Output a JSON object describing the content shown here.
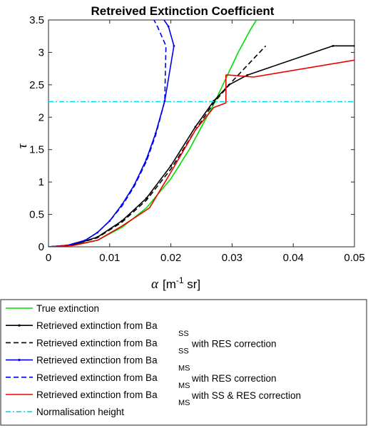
{
  "chart_data": {
    "type": "line",
    "title": "Retreived Extinction Coefficient",
    "xlabel_symbol": "α",
    "xlabel_units": "[m",
    "xlabel_exp": "-1",
    "xlabel_tail": " sr]",
    "ylabel": "τ",
    "xlim": [
      0,
      0.05
    ],
    "ylim": [
      0,
      3.5
    ],
    "xticks": [
      0,
      0.01,
      0.02,
      0.03,
      0.04,
      0.05
    ],
    "xtick_labels": [
      "0",
      "0.01",
      "0.02",
      "0.03",
      "0.04",
      "0.05"
    ],
    "yticks": [
      0,
      0.5,
      1,
      1.5,
      2,
      2.5,
      3,
      3.5
    ],
    "ytick_labels": [
      "0",
      "0.5",
      "1",
      "1.5",
      "2",
      "2.5",
      "3",
      "3.5"
    ],
    "grid": false,
    "legend_position": "below",
    "series": [
      {
        "name": "True extinction",
        "legend_main": "True extinction",
        "legend_sub": "",
        "legend_tail": "",
        "color": "#00dd00",
        "dash": "solid",
        "marker": false,
        "x": [
          0,
          0.004,
          0.008,
          0.012,
          0.016,
          0.02,
          0.023,
          0.025,
          0.027,
          0.029,
          0.031,
          0.033,
          0.0345
        ],
        "y": [
          0,
          0.03,
          0.1,
          0.3,
          0.6,
          1.05,
          1.5,
          1.85,
          2.2,
          2.6,
          3.0,
          3.35,
          3.58
        ]
      },
      {
        "name": "Retrieved extinction from Ba SS",
        "legend_main": "Retrieved extinction from Ba",
        "legend_sub": "SS",
        "legend_tail": "",
        "color": "#000000",
        "dash": "solid",
        "marker": true,
        "x": [
          0,
          0.004,
          0.008,
          0.012,
          0.016,
          0.02,
          0.024,
          0.027,
          0.0295,
          0.0325,
          0.0465,
          0.05
        ],
        "y": [
          0,
          0.03,
          0.15,
          0.4,
          0.75,
          1.25,
          1.85,
          2.25,
          2.5,
          2.65,
          3.1,
          3.1
        ]
      },
      {
        "name": "Retrieved extinction from Ba SS with RES correction",
        "legend_main": "Retrieved extinction from Ba",
        "legend_sub": "SS",
        "legend_tail": " with RES correction",
        "color": "#000000",
        "dash": "dashed",
        "marker": false,
        "x": [
          0,
          0.004,
          0.008,
          0.012,
          0.016,
          0.02,
          0.024,
          0.027,
          0.03,
          0.033,
          0.0355
        ],
        "y": [
          0,
          0.03,
          0.14,
          0.38,
          0.72,
          1.2,
          1.8,
          2.22,
          2.55,
          2.85,
          3.1
        ]
      },
      {
        "name": "Retrieved extinction from Ba MS",
        "legend_main": "Retrieved extinction from Ba",
        "legend_sub": "MS",
        "legend_tail": "",
        "color": "#0000ee",
        "dash": "solid",
        "marker": true,
        "x": [
          0,
          0.003,
          0.006,
          0.008,
          0.01,
          0.012,
          0.014,
          0.016,
          0.0175,
          0.019,
          0.0205,
          0.0196,
          0.0183
        ],
        "y": [
          0,
          0.02,
          0.1,
          0.22,
          0.4,
          0.65,
          0.95,
          1.35,
          1.75,
          2.25,
          3.1,
          3.4,
          3.58
        ]
      },
      {
        "name": "Retrieved extinction from Ba MS with RES correction",
        "legend_main": "Retrieved extinction from Ba",
        "legend_sub": "MS",
        "legend_tail": " with RES correction",
        "color": "#0000ee",
        "dash": "dashed",
        "marker": false,
        "x": [
          0,
          0.003,
          0.006,
          0.008,
          0.01,
          0.012,
          0.014,
          0.016,
          0.0175,
          0.019,
          0.0192,
          0.0178,
          0.0168
        ],
        "y": [
          0,
          0.02,
          0.1,
          0.22,
          0.4,
          0.63,
          0.93,
          1.32,
          1.72,
          2.25,
          3.1,
          3.4,
          3.58
        ]
      },
      {
        "name": "Retrieved extinction from Ba MS with SS & RES correction",
        "legend_main": "Retrieved extinction from Ba",
        "legend_sub": "MS",
        "legend_tail": " with SS & RES correction",
        "color": "#ee0000",
        "dash": "solid",
        "marker": false,
        "x": [
          0,
          0.004,
          0.008,
          0.012,
          0.0165,
          0.02,
          0.024,
          0.027,
          0.029,
          0.029,
          0.0295,
          0.0335,
          0.05
        ],
        "y": [
          0,
          0.02,
          0.1,
          0.32,
          0.6,
          1.15,
          1.8,
          2.15,
          2.22,
          2.65,
          2.65,
          2.62,
          2.88
        ]
      },
      {
        "name": "Normalisation height",
        "legend_main": "Normalisation height",
        "legend_sub": "",
        "legend_tail": "",
        "color": "#00dddd",
        "dash": "dashdot",
        "marker": false,
        "x": [
          0,
          0.05
        ],
        "y": [
          2.24,
          2.24
        ]
      }
    ]
  }
}
